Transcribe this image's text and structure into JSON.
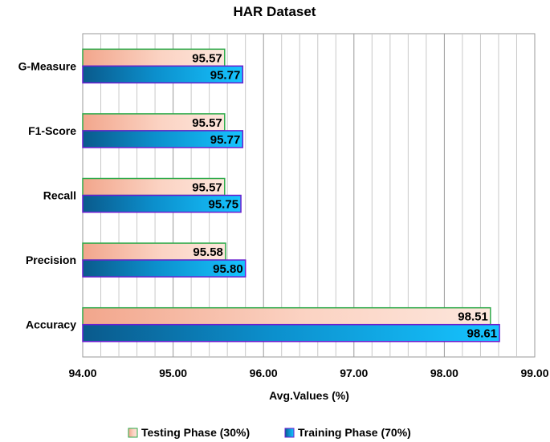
{
  "chart_data": {
    "type": "bar",
    "orientation": "horizontal",
    "title": "HAR Dataset",
    "xlabel": "Avg.Values (%)",
    "ylabel": "",
    "xlim": [
      94.0,
      99.0
    ],
    "x_tick_labels": [
      "94.00",
      "95.00",
      "96.00",
      "97.00",
      "98.00",
      "99.00"
    ],
    "minor_grid_step": 0.2,
    "grid": true,
    "legend_position": "bottom",
    "categories": [
      "G-Measure",
      "F1-Score",
      "Recall",
      "Precision",
      "Accuracy"
    ],
    "series": [
      {
        "name": "Testing Phase (30%)",
        "values": [
          95.57,
          95.57,
          95.57,
          95.58,
          98.51
        ],
        "labels": [
          "95.57",
          "95.57",
          "95.57",
          "95.58",
          "98.51"
        ],
        "colors": {
          "light": "#fde6dc",
          "dark": "#f2a68c",
          "stroke": "#2eaa4a"
        }
      },
      {
        "name": "Training Phase (70%)",
        "values": [
          95.77,
          95.77,
          95.75,
          95.8,
          98.61
        ],
        "labels": [
          "95.77",
          "95.77",
          "95.75",
          "95.80",
          "98.61"
        ],
        "colors": {
          "light": "#16c4ff",
          "dark": "#0a5a8c",
          "stroke": "#6a1fd0"
        }
      }
    ]
  }
}
